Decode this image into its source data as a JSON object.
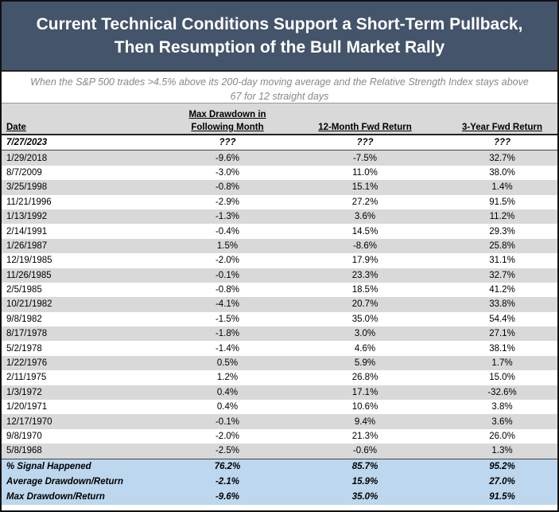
{
  "header": {
    "title": [
      "Current Technical Conditions Support a Short-Term Pullback,",
      "Then Resumption of the Bull Market Rally"
    ],
    "subtitle": "When the S&P 500 trades >4.5% above its 200-day moving average and the Relative Strength Index stays above 67 for 12 straight days"
  },
  "table": {
    "columns": [
      "Date",
      "Max Drawdown in Following Month",
      "12-Month Fwd Return",
      "3-Year Fwd Return"
    ],
    "current": [
      "7/27/2023",
      "???",
      "???",
      "???"
    ],
    "rows": [
      [
        "1/29/2018",
        "-9.6%",
        "-7.5%",
        "32.7%"
      ],
      [
        "8/7/2009",
        "-3.0%",
        "11.0%",
        "38.0%"
      ],
      [
        "3/25/1998",
        "-0.8%",
        "15.1%",
        "1.4%"
      ],
      [
        "11/21/1996",
        "-2.9%",
        "27.2%",
        "91.5%"
      ],
      [
        "1/13/1992",
        "-1.3%",
        "3.6%",
        "11.2%"
      ],
      [
        "2/14/1991",
        "-0.4%",
        "14.5%",
        "29.3%"
      ],
      [
        "1/26/1987",
        "1.5%",
        "-8.6%",
        "25.8%"
      ],
      [
        "12/19/1985",
        "-2.0%",
        "17.9%",
        "31.1%"
      ],
      [
        "11/26/1985",
        "-0.1%",
        "23.3%",
        "32.7%"
      ],
      [
        "2/5/1985",
        "-0.8%",
        "18.5%",
        "41.2%"
      ],
      [
        "10/21/1982",
        "-4.1%",
        "20.7%",
        "33.8%"
      ],
      [
        "9/8/1982",
        "-1.5%",
        "35.0%",
        "54.4%"
      ],
      [
        "8/17/1978",
        "-1.8%",
        "3.0%",
        "27.1%"
      ],
      [
        "5/2/1978",
        "-1.4%",
        "4.6%",
        "38.1%"
      ],
      [
        "1/22/1976",
        "0.5%",
        "5.9%",
        "1.7%"
      ],
      [
        "2/11/1975",
        "1.2%",
        "26.8%",
        "15.0%"
      ],
      [
        "1/3/1972",
        "0.4%",
        "17.1%",
        "-32.6%"
      ],
      [
        "1/20/1971",
        "0.4%",
        "10.6%",
        "3.8%"
      ],
      [
        "12/17/1970",
        "-0.1%",
        "9.4%",
        "3.6%"
      ],
      [
        "9/8/1970",
        "-2.0%",
        "21.3%",
        "26.0%"
      ],
      [
        "5/8/1968",
        "-2.5%",
        "-0.6%",
        "1.3%"
      ]
    ],
    "summary": [
      [
        "% Signal Happened",
        "76.2%",
        "85.7%",
        "95.2%"
      ],
      [
        "Average Drawdown/Return",
        "-2.1%",
        "15.9%",
        "27.0%"
      ],
      [
        "Max Drawdown/Return",
        "-9.6%",
        "35.0%",
        "91.5%"
      ]
    ]
  }
}
